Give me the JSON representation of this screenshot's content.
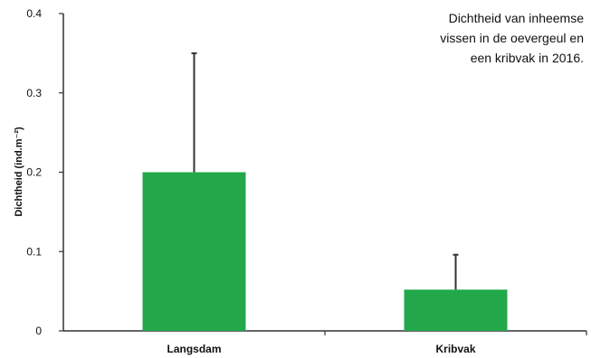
{
  "caption": {
    "lines": [
      "Dichtheid van inheemse",
      "vissen in de oevergeul en",
      "een kribvak in 2016."
    ]
  },
  "chart_data": {
    "type": "bar",
    "title": "",
    "xlabel": "",
    "ylabel": "Dichtheid (ind.m⁻²)",
    "categories": [
      "Langsdam",
      "Kribvak"
    ],
    "values": [
      0.2,
      0.052
    ],
    "error_upper": [
      0.35,
      0.096
    ],
    "ylim": [
      0,
      0.4
    ],
    "yticks": [
      0,
      0.1,
      0.2,
      0.3,
      0.4
    ],
    "ytick_labels": [
      "0",
      "0.1",
      "0.2",
      "0.3",
      "0.4"
    ],
    "grid": false,
    "bar_color": "#22a84a",
    "error_color": "#333333",
    "axis_color": "#333333"
  }
}
